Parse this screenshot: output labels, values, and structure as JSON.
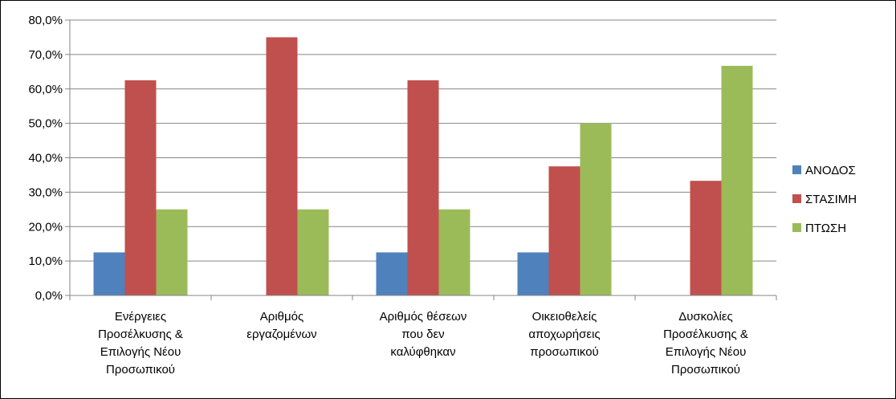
{
  "chart_data": {
    "type": "bar",
    "title": "",
    "xlabel": "",
    "ylabel": "",
    "categories": [
      [
        "Ενέργειες",
        "Προσέλκυσης &",
        "Επιλογής Νέου",
        "Προσωπικού"
      ],
      [
        "Αριθμός",
        "εργαζομένων"
      ],
      [
        "Αριθμός θέσεων",
        "που δεν",
        "καλύφθηκαν"
      ],
      [
        "Οικειοθελείς",
        "αποχωρήσεις",
        "προσωπικού"
      ],
      [
        "Δυσκολίες",
        "Προσέλκυσης &",
        "Επιλογής Νέου",
        "Προσωπικού"
      ]
    ],
    "series": [
      {
        "name": "ΑΝΟΔΟΣ",
        "color": "#4f81bd",
        "values": [
          12.5,
          0,
          12.5,
          12.5,
          0
        ]
      },
      {
        "name": "ΣΤΑΣΙΜΗ",
        "color": "#c0504d",
        "values": [
          62.5,
          75.0,
          62.5,
          37.5,
          33.3
        ]
      },
      {
        "name": "ΠΤΩΣΗ",
        "color": "#9bbb59",
        "values": [
          25.0,
          25.0,
          25.0,
          50.0,
          66.7
        ]
      }
    ],
    "ylim": [
      0,
      80
    ],
    "yticks": [
      0,
      10,
      20,
      30,
      40,
      50,
      60,
      70,
      80
    ],
    "ytick_labels": [
      "0,0%",
      "10,0%",
      "20,0%",
      "30,0%",
      "40,0%",
      "50,0%",
      "60,0%",
      "70,0%",
      "80,0%"
    ],
    "grid": true,
    "legend_position": "right"
  }
}
